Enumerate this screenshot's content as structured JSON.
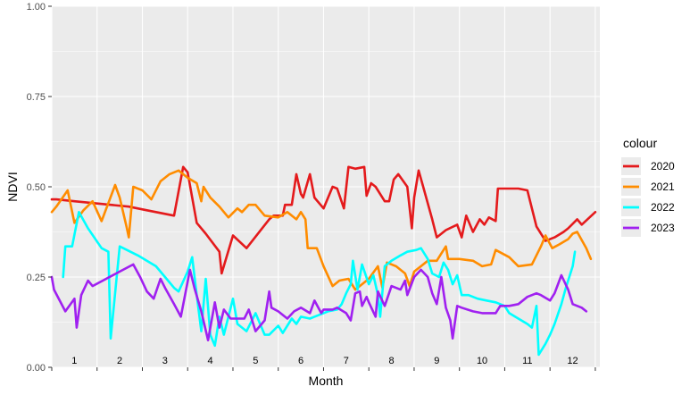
{
  "chart_data": {
    "type": "line",
    "title": "",
    "xlabel": "Month",
    "ylabel": "NDVI",
    "xlim": [
      0.5,
      12.6
    ],
    "ylim": [
      0,
      1
    ],
    "y_ticks": [
      "0.00",
      "0.25",
      "0.50",
      "0.75",
      "1.00"
    ],
    "y_tick_values": [
      0,
      0.25,
      0.5,
      0.75,
      1.0
    ],
    "month_labels": [
      "1",
      "2",
      "3",
      "4",
      "5",
      "6",
      "7",
      "8",
      "9",
      "10",
      "11",
      "12"
    ],
    "grid": true,
    "background": "#ebebeb",
    "legend": {
      "title": "colour",
      "position": "right"
    },
    "series": [
      {
        "name": "2020",
        "color": "#e41a1c",
        "points": [
          [
            0.5,
            0.465
          ],
          [
            0.6,
            0.465
          ],
          [
            1.0,
            0.46
          ],
          [
            1.4,
            0.455
          ],
          [
            1.8,
            0.45
          ],
          [
            2.2,
            0.445
          ],
          [
            2.6,
            0.435
          ],
          [
            3.2,
            0.42
          ],
          [
            3.4,
            0.555
          ],
          [
            3.5,
            0.54
          ],
          [
            3.7,
            0.4
          ],
          [
            3.9,
            0.37
          ],
          [
            4.2,
            0.32
          ],
          [
            4.25,
            0.26
          ],
          [
            4.5,
            0.365
          ],
          [
            4.8,
            0.33
          ],
          [
            5.3,
            0.41
          ],
          [
            5.4,
            0.42
          ],
          [
            5.6,
            0.42
          ],
          [
            5.65,
            0.45
          ],
          [
            5.8,
            0.45
          ],
          [
            5.9,
            0.535
          ],
          [
            6.0,
            0.48
          ],
          [
            6.05,
            0.47
          ],
          [
            6.2,
            0.535
          ],
          [
            6.3,
            0.47
          ],
          [
            6.5,
            0.44
          ],
          [
            6.7,
            0.5
          ],
          [
            6.8,
            0.495
          ],
          [
            6.95,
            0.44
          ],
          [
            7.05,
            0.555
          ],
          [
            7.2,
            0.55
          ],
          [
            7.4,
            0.555
          ],
          [
            7.45,
            0.475
          ],
          [
            7.55,
            0.51
          ],
          [
            7.65,
            0.5
          ],
          [
            7.85,
            0.46
          ],
          [
            7.95,
            0.46
          ],
          [
            8.05,
            0.52
          ],
          [
            8.15,
            0.535
          ],
          [
            8.35,
            0.5
          ],
          [
            8.45,
            0.385
          ],
          [
            8.5,
            0.47
          ],
          [
            8.6,
            0.545
          ],
          [
            8.7,
            0.5
          ],
          [
            8.9,
            0.41
          ],
          [
            9.0,
            0.36
          ],
          [
            9.2,
            0.38
          ],
          [
            9.45,
            0.395
          ],
          [
            9.55,
            0.36
          ],
          [
            9.65,
            0.42
          ],
          [
            9.8,
            0.375
          ],
          [
            9.95,
            0.41
          ],
          [
            10.05,
            0.395
          ],
          [
            10.15,
            0.415
          ],
          [
            10.3,
            0.405
          ],
          [
            10.35,
            0.495
          ],
          [
            10.8,
            0.495
          ],
          [
            11.0,
            0.49
          ],
          [
            11.2,
            0.39
          ],
          [
            11.4,
            0.35
          ],
          [
            11.6,
            0.36
          ],
          [
            11.8,
            0.375
          ],
          [
            11.9,
            0.385
          ],
          [
            12.1,
            0.41
          ],
          [
            12.2,
            0.395
          ],
          [
            12.5,
            0.43
          ]
        ]
      },
      {
        "name": "2021",
        "color": "#ff8c00",
        "points": [
          [
            0.5,
            0.43
          ],
          [
            0.6,
            0.445
          ],
          [
            0.85,
            0.49
          ],
          [
            1.0,
            0.4
          ],
          [
            1.2,
            0.435
          ],
          [
            1.4,
            0.46
          ],
          [
            1.6,
            0.405
          ],
          [
            1.9,
            0.505
          ],
          [
            2.0,
            0.47
          ],
          [
            2.15,
            0.39
          ],
          [
            2.2,
            0.36
          ],
          [
            2.3,
            0.5
          ],
          [
            2.5,
            0.49
          ],
          [
            2.7,
            0.465
          ],
          [
            2.9,
            0.515
          ],
          [
            3.1,
            0.535
          ],
          [
            3.3,
            0.545
          ],
          [
            3.5,
            0.525
          ],
          [
            3.7,
            0.51
          ],
          [
            3.8,
            0.46
          ],
          [
            3.85,
            0.5
          ],
          [
            4.0,
            0.47
          ],
          [
            4.2,
            0.445
          ],
          [
            4.4,
            0.415
          ],
          [
            4.6,
            0.44
          ],
          [
            4.7,
            0.43
          ],
          [
            4.85,
            0.45
          ],
          [
            5.0,
            0.45
          ],
          [
            5.2,
            0.42
          ],
          [
            5.5,
            0.415
          ],
          [
            5.7,
            0.43
          ],
          [
            5.9,
            0.41
          ],
          [
            6.0,
            0.43
          ],
          [
            6.1,
            0.41
          ],
          [
            6.15,
            0.33
          ],
          [
            6.35,
            0.33
          ],
          [
            6.5,
            0.28
          ],
          [
            6.7,
            0.225
          ],
          [
            6.85,
            0.24
          ],
          [
            7.05,
            0.245
          ],
          [
            7.2,
            0.215
          ],
          [
            7.5,
            0.245
          ],
          [
            7.7,
            0.28
          ],
          [
            7.8,
            0.22
          ],
          [
            7.9,
            0.29
          ],
          [
            8.1,
            0.28
          ],
          [
            8.3,
            0.26
          ],
          [
            8.4,
            0.225
          ],
          [
            8.5,
            0.265
          ],
          [
            8.65,
            0.28
          ],
          [
            8.8,
            0.295
          ],
          [
            9.0,
            0.295
          ],
          [
            9.1,
            0.315
          ],
          [
            9.2,
            0.335
          ],
          [
            9.25,
            0.3
          ],
          [
            9.5,
            0.3
          ],
          [
            9.8,
            0.295
          ],
          [
            10.0,
            0.28
          ],
          [
            10.2,
            0.285
          ],
          [
            10.3,
            0.325
          ],
          [
            10.6,
            0.305
          ],
          [
            10.8,
            0.28
          ],
          [
            11.1,
            0.285
          ],
          [
            11.3,
            0.335
          ],
          [
            11.4,
            0.365
          ],
          [
            11.55,
            0.33
          ],
          [
            11.7,
            0.34
          ],
          [
            11.9,
            0.355
          ],
          [
            12.0,
            0.37
          ],
          [
            12.1,
            0.375
          ],
          [
            12.3,
            0.33
          ],
          [
            12.4,
            0.3
          ]
        ]
      },
      {
        "name": "2022",
        "color": "#00ffff",
        "points": [
          [
            0.75,
            0.25
          ],
          [
            0.8,
            0.335
          ],
          [
            0.95,
            0.335
          ],
          [
            1.1,
            0.43
          ],
          [
            1.3,
            0.385
          ],
          [
            1.6,
            0.33
          ],
          [
            1.75,
            0.32
          ],
          [
            1.8,
            0.08
          ],
          [
            2.0,
            0.335
          ],
          [
            2.4,
            0.31
          ],
          [
            2.8,
            0.28
          ],
          [
            3.0,
            0.25
          ],
          [
            3.2,
            0.22
          ],
          [
            3.3,
            0.21
          ],
          [
            3.5,
            0.265
          ],
          [
            3.6,
            0.305
          ],
          [
            3.7,
            0.2
          ],
          [
            3.8,
            0.1
          ],
          [
            3.9,
            0.245
          ],
          [
            4.0,
            0.09
          ],
          [
            4.1,
            0.06
          ],
          [
            4.2,
            0.14
          ],
          [
            4.3,
            0.09
          ],
          [
            4.5,
            0.19
          ],
          [
            4.6,
            0.12
          ],
          [
            4.8,
            0.1
          ],
          [
            5.0,
            0.15
          ],
          [
            5.2,
            0.09
          ],
          [
            5.3,
            0.09
          ],
          [
            5.5,
            0.115
          ],
          [
            5.6,
            0.095
          ],
          [
            5.8,
            0.135
          ],
          [
            5.9,
            0.12
          ],
          [
            6.0,
            0.14
          ],
          [
            6.2,
            0.135
          ],
          [
            6.3,
            0.14
          ],
          [
            6.5,
            0.15
          ],
          [
            6.6,
            0.155
          ],
          [
            6.8,
            0.16
          ],
          [
            6.9,
            0.175
          ],
          [
            7.0,
            0.205
          ],
          [
            7.1,
            0.23
          ],
          [
            7.15,
            0.295
          ],
          [
            7.25,
            0.215
          ],
          [
            7.35,
            0.285
          ],
          [
            7.5,
            0.23
          ],
          [
            7.6,
            0.255
          ],
          [
            7.7,
            0.2
          ],
          [
            7.75,
            0.14
          ],
          [
            7.85,
            0.28
          ],
          [
            8.0,
            0.295
          ],
          [
            8.2,
            0.31
          ],
          [
            8.35,
            0.32
          ],
          [
            8.55,
            0.325
          ],
          [
            8.65,
            0.33
          ],
          [
            8.8,
            0.3
          ],
          [
            8.9,
            0.26
          ],
          [
            9.05,
            0.25
          ],
          [
            9.15,
            0.29
          ],
          [
            9.25,
            0.27
          ],
          [
            9.35,
            0.23
          ],
          [
            9.45,
            0.255
          ],
          [
            9.55,
            0.2
          ],
          [
            9.7,
            0.2
          ],
          [
            9.9,
            0.19
          ],
          [
            10.1,
            0.185
          ],
          [
            10.3,
            0.18
          ],
          [
            10.5,
            0.17
          ],
          [
            10.6,
            0.15
          ],
          [
            10.8,
            0.135
          ],
          [
            11.0,
            0.12
          ],
          [
            11.1,
            0.11
          ],
          [
            11.2,
            0.17
          ],
          [
            11.25,
            0.035
          ],
          [
            11.4,
            0.065
          ],
          [
            11.5,
            0.09
          ],
          [
            11.6,
            0.12
          ],
          [
            11.75,
            0.175
          ],
          [
            11.85,
            0.22
          ],
          [
            12.0,
            0.28
          ],
          [
            12.05,
            0.32
          ]
        ]
      },
      {
        "name": "2023",
        "color": "#a020f0",
        "points": [
          [
            0.5,
            0.25
          ],
          [
            0.55,
            0.215
          ],
          [
            0.8,
            0.155
          ],
          [
            1.0,
            0.19
          ],
          [
            1.05,
            0.11
          ],
          [
            1.15,
            0.2
          ],
          [
            1.3,
            0.24
          ],
          [
            1.4,
            0.225
          ],
          [
            1.7,
            0.245
          ],
          [
            2.0,
            0.265
          ],
          [
            2.3,
            0.285
          ],
          [
            2.45,
            0.25
          ],
          [
            2.6,
            0.21
          ],
          [
            2.75,
            0.19
          ],
          [
            2.9,
            0.245
          ],
          [
            3.0,
            0.22
          ],
          [
            3.2,
            0.175
          ],
          [
            3.35,
            0.14
          ],
          [
            3.55,
            0.27
          ],
          [
            3.65,
            0.22
          ],
          [
            3.8,
            0.155
          ],
          [
            3.95,
            0.075
          ],
          [
            4.1,
            0.18
          ],
          [
            4.2,
            0.11
          ],
          [
            4.3,
            0.16
          ],
          [
            4.45,
            0.135
          ],
          [
            4.6,
            0.135
          ],
          [
            4.75,
            0.135
          ],
          [
            4.85,
            0.16
          ],
          [
            5.0,
            0.1
          ],
          [
            5.2,
            0.13
          ],
          [
            5.3,
            0.21
          ],
          [
            5.35,
            0.165
          ],
          [
            5.5,
            0.155
          ],
          [
            5.7,
            0.135
          ],
          [
            5.85,
            0.155
          ],
          [
            6.0,
            0.165
          ],
          [
            6.2,
            0.15
          ],
          [
            6.3,
            0.185
          ],
          [
            6.45,
            0.15
          ],
          [
            6.5,
            0.16
          ],
          [
            6.7,
            0.16
          ],
          [
            6.8,
            0.165
          ],
          [
            7.0,
            0.15
          ],
          [
            7.1,
            0.13
          ],
          [
            7.2,
            0.205
          ],
          [
            7.3,
            0.21
          ],
          [
            7.35,
            0.17
          ],
          [
            7.45,
            0.195
          ],
          [
            7.5,
            0.18
          ],
          [
            7.65,
            0.14
          ],
          [
            7.7,
            0.21
          ],
          [
            7.85,
            0.17
          ],
          [
            8.0,
            0.225
          ],
          [
            8.2,
            0.215
          ],
          [
            8.3,
            0.24
          ],
          [
            8.35,
            0.2
          ],
          [
            8.5,
            0.25
          ],
          [
            8.65,
            0.27
          ],
          [
            8.8,
            0.25
          ],
          [
            8.9,
            0.205
          ],
          [
            9.0,
            0.175
          ],
          [
            9.1,
            0.25
          ],
          [
            9.2,
            0.165
          ],
          [
            9.3,
            0.13
          ],
          [
            9.35,
            0.08
          ],
          [
            9.45,
            0.17
          ],
          [
            9.55,
            0.165
          ],
          [
            9.8,
            0.155
          ],
          [
            10.0,
            0.15
          ],
          [
            10.3,
            0.15
          ],
          [
            10.4,
            0.17
          ],
          [
            10.6,
            0.17
          ],
          [
            10.8,
            0.175
          ],
          [
            10.9,
            0.185
          ],
          [
            11.0,
            0.195
          ],
          [
            11.2,
            0.205
          ],
          [
            11.3,
            0.2
          ],
          [
            11.5,
            0.185
          ],
          [
            11.6,
            0.205
          ],
          [
            11.75,
            0.255
          ],
          [
            11.9,
            0.215
          ],
          [
            12.0,
            0.175
          ],
          [
            12.2,
            0.165
          ],
          [
            12.3,
            0.155
          ]
        ]
      }
    ]
  }
}
